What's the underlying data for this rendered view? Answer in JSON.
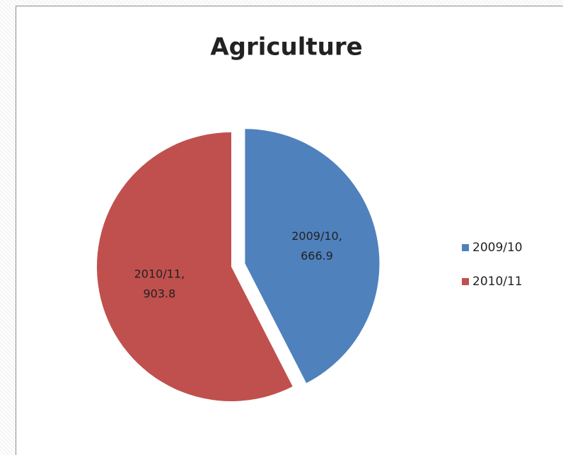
{
  "chart_data": {
    "type": "pie",
    "title": "Agriculture",
    "categories": [
      "2009/10",
      "2010/11"
    ],
    "values": [
      666.9,
      903.8
    ],
    "value_labels": [
      "2009/10, 666.9",
      "2010/11, 903.8"
    ],
    "colors": [
      "#4f81bd",
      "#c0504d"
    ],
    "legend": "right"
  }
}
